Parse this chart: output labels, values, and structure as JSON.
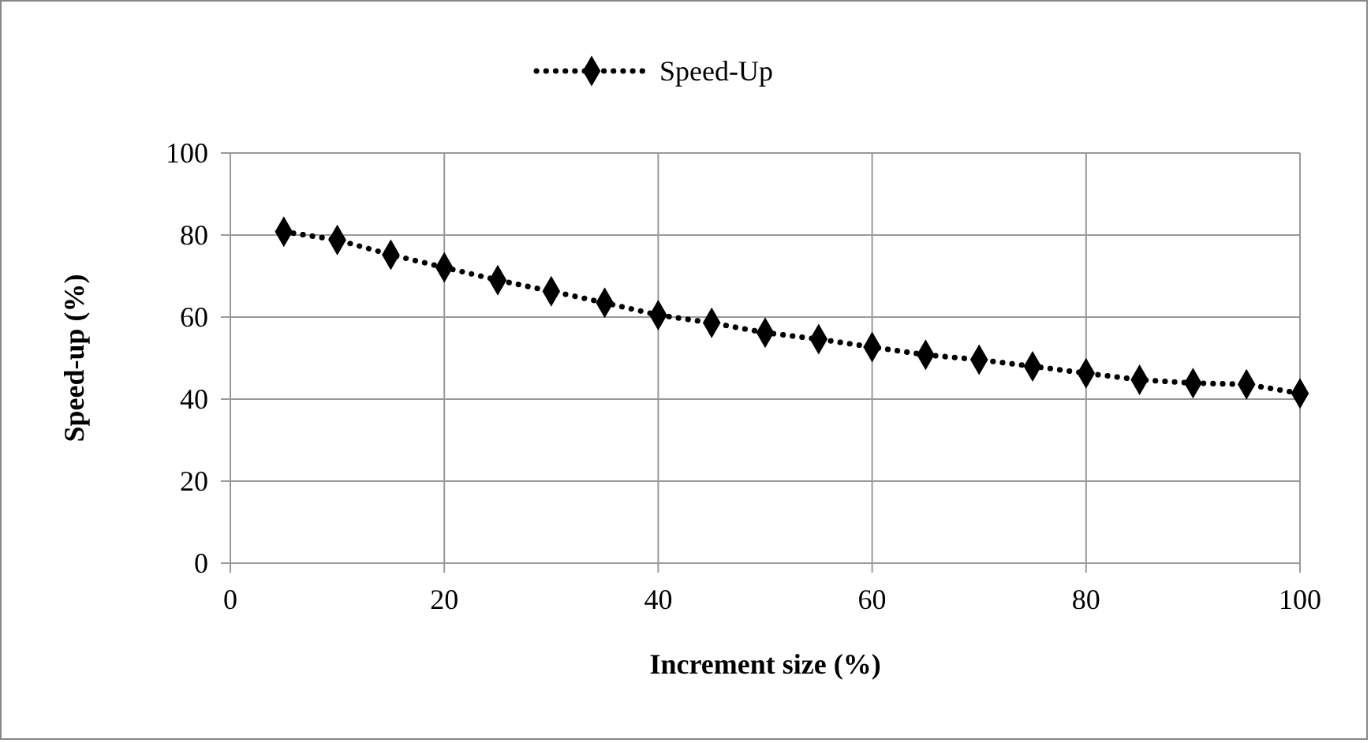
{
  "chart_data": {
    "type": "line",
    "xlabel": "Increment size (%)",
    "ylabel": "Speed-up (%)",
    "x": [
      5,
      10,
      15,
      20,
      25,
      30,
      35,
      40,
      45,
      50,
      55,
      60,
      65,
      70,
      75,
      80,
      85,
      90,
      95,
      100
    ],
    "series": [
      {
        "name": "Speed-Up",
        "color": "#000000",
        "values": [
          80.8,
          78.8,
          75.2,
          72.1,
          69,
          66.3,
          63.5,
          60.5,
          58.6,
          56.2,
          54.6,
          52.7,
          50.8,
          49.6,
          48,
          46.3,
          44.7,
          43.9,
          43.6,
          41.4
        ]
      }
    ],
    "xlim": [
      0,
      100
    ],
    "xticks": [
      0,
      20,
      40,
      60,
      80,
      100
    ],
    "ylim": [
      0,
      100
    ],
    "yticks": [
      0,
      20,
      40,
      60,
      80,
      100
    ],
    "grid": true,
    "legend": "top",
    "marker": "diamond",
    "line_style": "dotted"
  }
}
